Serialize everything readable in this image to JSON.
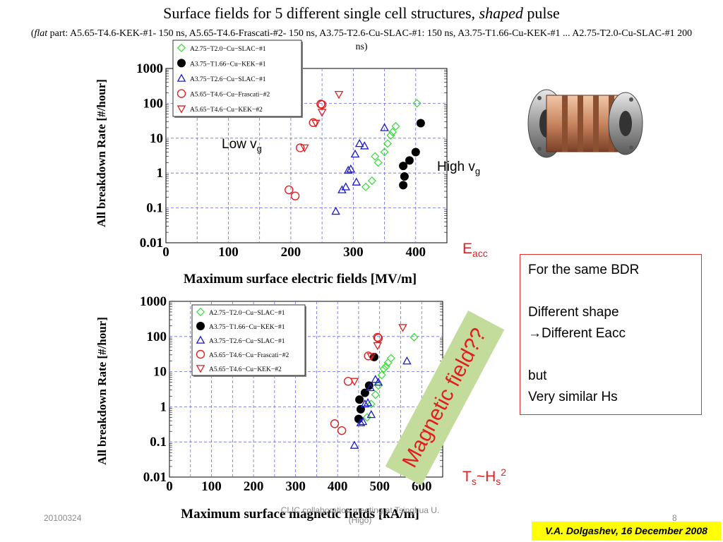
{
  "slide": {
    "title_pre": "Surface fields for 5 different single cell structures, ",
    "title_em": "shaped",
    "title_post": " pulse",
    "subtitle_open": "(",
    "subtitle_em": "flat",
    "subtitle_rest": " part: A5.65-T4.6-KEK-#1- 150 ns, A5.65-T4.6-Frascati-#2- 150 ns, A3.75-T2.6-Cu-SLAC-#1: 150 ns, A3.75-T1.66-Cu-KEK-#1 ... A2.75-T2.0-Cu-SLAC-#1 200 ns)",
    "low_vg": "Low v",
    "low_vg_sub": "g",
    "high_vg": "High v",
    "high_vg_sub": "g",
    "eacc": "E",
    "eacc_sub": "acc",
    "ts_hs": "T",
    "ts_sub": "s",
    "ts_mid": "~H",
    "hs_sub": "s",
    "hs_sup": "2",
    "magnetic_label": "Magnetic field??",
    "note_lines": [
      "For the same BDR",
      "",
      "Different shape",
      "→Different Eacc",
      "",
      "but",
      "Very similar Hs"
    ],
    "footer_date": "20100324",
    "footer_center_1": "CLIC collaboration meeting at Tsinghua U.",
    "footer_center_2": "(Higo)",
    "footer_page": "8",
    "credit": "V.A. Dolgashev, 16 December 2008"
  },
  "colors": {
    "slac_a275": "#33dd33",
    "kek_a375": "#000000",
    "slac_a375": "#1a1acc",
    "frascati": "#e02020",
    "kek_a565": "#e02020",
    "grid": "#6a6ae0",
    "note_border": "#e03030",
    "banner": "#ffff00",
    "green_band": "#c3dc9c"
  },
  "chart_data": [
    {
      "type": "scatter",
      "xlabel": "Maximum surface electric fields [MV/m]",
      "ylabel": "All breakdown Rate [#/hour]",
      "yscale": "log",
      "xlim": [
        0,
        450
      ],
      "ylim": [
        0.01,
        1000
      ],
      "xticks": [
        "0",
        "100",
        "200",
        "300",
        "400"
      ],
      "yticks": [
        "0.01",
        "0.1",
        "1",
        "10",
        "100",
        "1000"
      ],
      "legend": "top-left",
      "grid": true,
      "series": [
        {
          "name": "A2.75−T2.0−Cu−SLAC−#1",
          "marker": "diamond",
          "color": "#33dd33",
          "points": [
            [
              320,
              0.4
            ],
            [
              330,
              0.6
            ],
            [
              335,
              3
            ],
            [
              340,
              2
            ],
            [
              350,
              4
            ],
            [
              355,
              7
            ],
            [
              360,
              12
            ],
            [
              363,
              15
            ],
            [
              368,
              22
            ],
            [
              402,
              100
            ]
          ]
        },
        {
          "name": "A3.75−T1.66−Cu−KEK−#1",
          "marker": "circle-filled",
          "color": "#000000",
          "points": [
            [
              380,
              0.45
            ],
            [
              382,
              0.8
            ],
            [
              380,
              1.6
            ],
            [
              390,
              2.3
            ],
            [
              400,
              4
            ],
            [
              408,
              27
            ]
          ]
        },
        {
          "name": "A3.75−T2.6−Cu−SLAC−#1",
          "marker": "triangle-up",
          "color": "#1a1acc",
          "points": [
            [
              272,
              0.08
            ],
            [
              282,
              0.33
            ],
            [
              288,
              0.4
            ],
            [
              292,
              1.2
            ],
            [
              296,
              1.3
            ],
            [
              305,
              0.55
            ],
            [
              303,
              3.5
            ],
            [
              310,
              7
            ],
            [
              318,
              6
            ],
            [
              350,
              20
            ]
          ]
        },
        {
          "name": "A5.65−T4.6−Cu−Frascati−#2",
          "marker": "circle-open",
          "color": "#e02020",
          "points": [
            [
              197,
              0.33
            ],
            [
              207,
              0.22
            ],
            [
              215,
              5.3
            ],
            [
              236,
              28
            ],
            [
              248,
              95
            ],
            [
              250,
              92
            ]
          ]
        },
        {
          "name": "A5.65−T4.6−Cu−KEK−#2",
          "marker": "triangle-down",
          "color": "#e02020",
          "points": [
            [
              222,
              5.3
            ],
            [
              240,
              27
            ],
            [
              250,
              55
            ],
            [
              277,
              180
            ]
          ]
        }
      ]
    },
    {
      "type": "scatter",
      "xlabel": "Maximum surface magnetic fields [kA/m]",
      "ylabel": "All breakdown Rate [#/hour]",
      "yscale": "log",
      "xlim": [
        0,
        650
      ],
      "ylim": [
        0.01,
        1000
      ],
      "xticks": [
        "0",
        "100",
        "200",
        "300",
        "400",
        "500",
        "600"
      ],
      "yticks": [
        "0.01",
        "0.1",
        "1",
        "10",
        "100",
        "1000"
      ],
      "legend": "top-left",
      "grid": true,
      "series": [
        {
          "name": "A2.75−T2.0−Cu−SLAC−#1",
          "marker": "diamond",
          "color": "#33dd33",
          "points": [
            [
              470,
              0.5
            ],
            [
              480,
              1.2
            ],
            [
              490,
              2.2
            ],
            [
              497,
              4
            ],
            [
              505,
              8
            ],
            [
              510,
              12
            ],
            [
              515,
              14
            ],
            [
              520,
              18
            ],
            [
              527,
              24
            ],
            [
              582,
              95
            ]
          ]
        },
        {
          "name": "A3.75−T1.66−Cu−KEK−#1",
          "marker": "circle-filled",
          "color": "#000000",
          "points": [
            [
              450,
              0.45
            ],
            [
              455,
              0.85
            ],
            [
              452,
              1.6
            ],
            [
              465,
              2.5
            ],
            [
              475,
              4
            ],
            [
              487,
              26
            ]
          ]
        },
        {
          "name": "A3.75−T2.6−Cu−SLAC−#1",
          "marker": "triangle-up",
          "color": "#1a1acc",
          "points": [
            [
              440,
              0.08
            ],
            [
              455,
              0.35
            ],
            [
              460,
              0.38
            ],
            [
              465,
              1.2
            ],
            [
              472,
              1.3
            ],
            [
              480,
              0.6
            ],
            [
              478,
              3.5
            ],
            [
              490,
              6
            ],
            [
              497,
              5
            ],
            [
              565,
              20
            ]
          ]
        },
        {
          "name": "A5.65−T4.6−Cu−Frascati−#2",
          "marker": "circle-open",
          "color": "#e02020",
          "points": [
            [
              393,
              0.33
            ],
            [
              410,
              0.21
            ],
            [
              425,
              5.3
            ],
            [
              473,
              28
            ],
            [
              495,
              95
            ],
            [
              497,
              90
            ]
          ]
        },
        {
          "name": "A5.65−T4.6−Cu−KEK−#2",
          "marker": "triangle-down",
          "color": "#e02020",
          "points": [
            [
              440,
              5.3
            ],
            [
              480,
              27
            ],
            [
              495,
              55
            ],
            [
              555,
              180
            ]
          ]
        }
      ]
    }
  ]
}
